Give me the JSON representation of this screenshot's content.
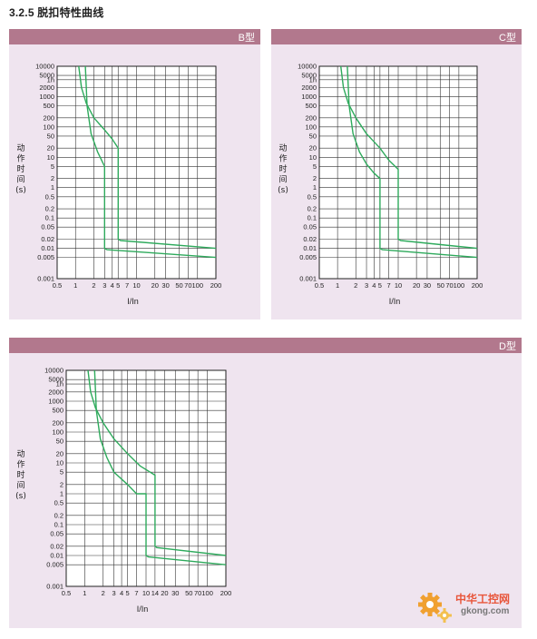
{
  "section_title": "3.2.5 脱扣特性曲线",
  "chart_data": [
    {
      "type": "line",
      "title": "B型",
      "ylabel": [
        "动",
        "作",
        "时",
        "间",
        "(s)"
      ],
      "xlabel": "I/In",
      "x_scale": "log",
      "y_scale": "log",
      "xlim": [
        0.5,
        200
      ],
      "ylim": [
        0.001,
        10000
      ],
      "x_ticks": [
        "0.5",
        "1",
        "2",
        "3",
        "4",
        "5",
        "7",
        "10",
        "20",
        "30",
        "50",
        "70",
        "100",
        "200"
      ],
      "y_ticks": [
        "0.001",
        "0.005",
        "0.01",
        "0.02",
        "0.05",
        "0.1",
        "0.2",
        "0.5",
        "1",
        "2",
        "5",
        "10",
        "20",
        "50",
        "100",
        "200",
        "500",
        "1000",
        "2000",
        "1h",
        "5000",
        "10000"
      ],
      "grid": true,
      "series": [
        {
          "x": [
            1.13,
            1.25,
            1.5,
            2,
            3,
            4,
            5,
            5,
            5.5,
            200
          ],
          "y": [
            10000,
            2000,
            600,
            200,
            80,
            40,
            20,
            0.02,
            0.018,
            0.01
          ]
        },
        {
          "x": [
            1.45,
            1.55,
            1.8,
            2.3,
            3,
            3,
            3.3,
            200
          ],
          "y": [
            10000,
            500,
            60,
            15,
            5,
            0.01,
            0.009,
            0.005
          ]
        }
      ],
      "line_color": "#2eaa5c"
    },
    {
      "type": "line",
      "title": "C型",
      "ylabel": [
        "动",
        "作",
        "时",
        "间",
        "(s)"
      ],
      "xlabel": "I/In",
      "x_scale": "log",
      "y_scale": "log",
      "xlim": [
        0.5,
        200
      ],
      "ylim": [
        0.001,
        10000
      ],
      "x_ticks": [
        "0.5",
        "1",
        "2",
        "3",
        "4",
        "5",
        "7",
        "10",
        "20",
        "30",
        "50",
        "70",
        "100",
        "200"
      ],
      "y_ticks": [
        "0.001",
        "0.005",
        "0.01",
        "0.02",
        "0.05",
        "0.1",
        "0.2",
        "0.5",
        "1",
        "2",
        "5",
        "10",
        "20",
        "50",
        "100",
        "200",
        "500",
        "1000",
        "2000",
        "1h",
        "5000",
        "10000"
      ],
      "grid": true,
      "series": [
        {
          "x": [
            1.13,
            1.25,
            1.5,
            2,
            3,
            5,
            7,
            10,
            10,
            11,
            200
          ],
          "y": [
            10000,
            2000,
            600,
            200,
            60,
            20,
            8,
            4,
            0.02,
            0.018,
            0.01
          ]
        },
        {
          "x": [
            1.45,
            1.55,
            1.8,
            2.3,
            3,
            4,
            5,
            5,
            5.5,
            200
          ],
          "y": [
            10000,
            500,
            60,
            15,
            6,
            3,
            2,
            0.01,
            0.009,
            0.005
          ]
        }
      ],
      "line_color": "#2eaa5c"
    },
    {
      "type": "line",
      "title": "D型",
      "ylabel": [
        "动",
        "作",
        "时",
        "间",
        "(s)"
      ],
      "xlabel": "I/In",
      "x_scale": "log",
      "y_scale": "log",
      "xlim": [
        0.5,
        200
      ],
      "ylim": [
        0.001,
        10000
      ],
      "x_ticks": [
        "0.5",
        "1",
        "2",
        "3",
        "4",
        "5",
        "7",
        "10",
        "14",
        "20",
        "30",
        "50",
        "70",
        "100",
        "200"
      ],
      "y_ticks": [
        "0.001",
        "0.005",
        "0.01",
        "0.02",
        "0.05",
        "0.1",
        "0.2",
        "0.5",
        "1",
        "2",
        "5",
        "10",
        "20",
        "50",
        "100",
        "200",
        "500",
        "1000",
        "2000",
        "1h",
        "5000",
        "10000"
      ],
      "grid": true,
      "series": [
        {
          "x": [
            1.13,
            1.25,
            1.5,
            2,
            3,
            5,
            8,
            14,
            14,
            15,
            200
          ],
          "y": [
            10000,
            2000,
            600,
            200,
            60,
            20,
            8,
            4,
            0.02,
            0.018,
            0.01
          ]
        },
        {
          "x": [
            1.45,
            1.55,
            1.8,
            2.3,
            3,
            5,
            7,
            10,
            10,
            11,
            200
          ],
          "y": [
            10000,
            500,
            60,
            15,
            5,
            2,
            1,
            1,
            0.01,
            0.009,
            0.005
          ]
        }
      ],
      "line_color": "#2eaa5c"
    }
  ],
  "watermark": {
    "brand": "中华工控网",
    "domain": "gkong.com",
    "icon": "gear-icon",
    "color": "#e8553a"
  }
}
